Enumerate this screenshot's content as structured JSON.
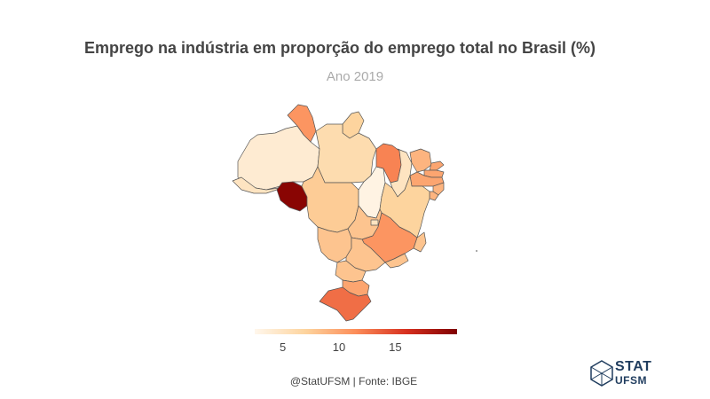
{
  "title": "Emprego na indústria em proporção do emprego total no Brasil (%)",
  "subtitle": "Ano 2019",
  "caption": "@StatUFSM  |  Fonte: IBGE",
  "logo": {
    "line1": "STAT",
    "line2": "UFSM"
  },
  "chart_data": {
    "type": "choropleth",
    "title": "Emprego na indústria em proporção do emprego total no Brasil (%)",
    "subtitle": "Ano 2019",
    "legend": {
      "position": "bottom",
      "ticks": [
        "5",
        "10",
        "15"
      ],
      "tick_values": [
        5,
        10,
        15
      ],
      "range": [
        2.5,
        20.5
      ],
      "colors": [
        "#fff7ec",
        "#fdd49e",
        "#fc8d59",
        "#d7301f",
        "#7f0000"
      ]
    },
    "regions": [
      {
        "code": "AM",
        "value": 4
      },
      {
        "code": "RR",
        "value": 11
      },
      {
        "code": "AP",
        "value": 7
      },
      {
        "code": "PA",
        "value": 6
      },
      {
        "code": "AC",
        "value": 5
      },
      {
        "code": "RO",
        "value": 20
      },
      {
        "code": "MT",
        "value": 7.5
      },
      {
        "code": "TO",
        "value": 3
      },
      {
        "code": "MA",
        "value": 12
      },
      {
        "code": "PI",
        "value": 5
      },
      {
        "code": "CE",
        "value": 9
      },
      {
        "code": "RN",
        "value": 10
      },
      {
        "code": "PB",
        "value": 10
      },
      {
        "code": "PE",
        "value": 10
      },
      {
        "code": "AL",
        "value": 9
      },
      {
        "code": "SE",
        "value": 9
      },
      {
        "code": "BA",
        "value": 7
      },
      {
        "code": "GO",
        "value": 8
      },
      {
        "code": "DF",
        "value": 5
      },
      {
        "code": "MG",
        "value": 11
      },
      {
        "code": "ES",
        "value": 8
      },
      {
        "code": "MS",
        "value": 8
      },
      {
        "code": "SP",
        "value": 8
      },
      {
        "code": "RJ",
        "value": 8
      },
      {
        "code": "PR",
        "value": 8
      },
      {
        "code": "SC",
        "value": 10
      },
      {
        "code": "RS",
        "value": 13
      }
    ]
  }
}
